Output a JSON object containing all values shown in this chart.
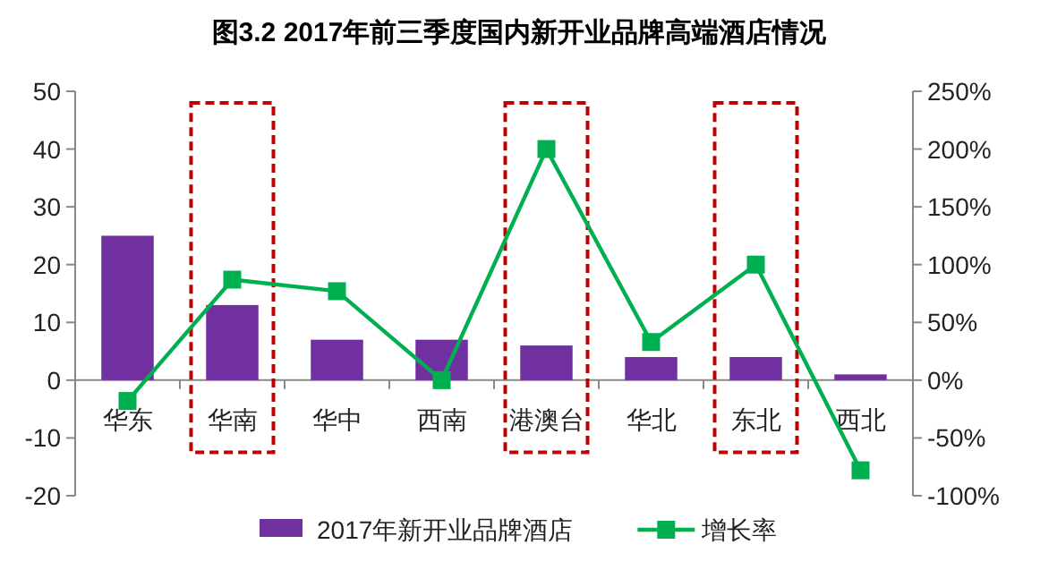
{
  "chart_data": {
    "type": "bar",
    "title": "图3.2 2017年前三季度国内新开业品牌高端酒店情况",
    "categories": [
      "华东",
      "华南",
      "华中",
      "西南",
      "港澳台",
      "华北",
      "东北",
      "西北"
    ],
    "series": [
      {
        "name": "2017年新开业品牌酒店",
        "color": "#7030a0",
        "values": [
          25,
          13,
          7,
          7,
          6,
          4,
          4,
          1
        ]
      },
      {
        "name": "增长率",
        "type": "line",
        "axis": "y2",
        "color": "#00b050",
        "marker": "square",
        "values": [
          -18,
          87,
          77,
          0,
          200,
          33,
          100,
          -78
        ]
      }
    ],
    "ylim": [
      -20,
      50
    ],
    "yticks": [
      -20,
      -10,
      0,
      10,
      20,
      30,
      40,
      50
    ],
    "y2lim": [
      -100,
      250
    ],
    "y2ticks": [
      {
        "value": -100,
        "label": "-100%"
      },
      {
        "value": -50,
        "label": "-50%"
      },
      {
        "value": 0,
        "label": "0%"
      },
      {
        "value": 50,
        "label": "50%"
      },
      {
        "value": 100,
        "label": "100%"
      },
      {
        "value": 150,
        "label": "150%"
      },
      {
        "value": 200,
        "label": "200%"
      },
      {
        "value": 250,
        "label": "250%"
      }
    ],
    "grid": false,
    "legend": "bottom"
  }
}
